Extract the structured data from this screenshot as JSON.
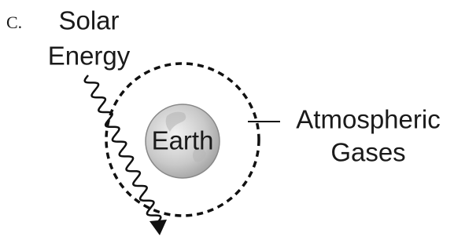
{
  "item_letter": "C.",
  "solar_energy": [
    "Solar",
    "Energy"
  ],
  "earth": "Earth",
  "atmospheric_gases": [
    "Atmospheric",
    "Gases"
  ]
}
